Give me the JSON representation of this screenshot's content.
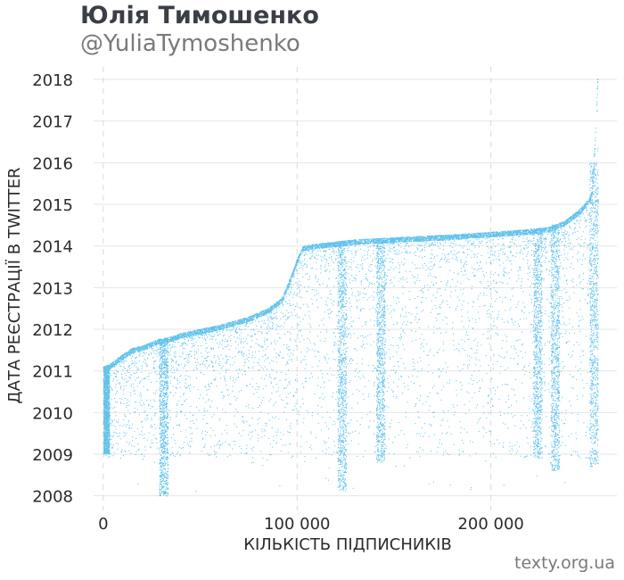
{
  "title": "Юлія Тимошенко",
  "subtitle": "@YuliaTymoshenko",
  "credit": "texty.org.ua",
  "colors": {
    "points": "#2eaee6",
    "grid": "#e6e6e6",
    "vgrid": "#d9d9d9",
    "title": "#3b3e47",
    "muted": "#7a7a7a"
  },
  "chart_data": {
    "type": "scatter",
    "xlabel": "КІЛЬКІСТЬ ПІДПИСНИКІВ",
    "ylabel": "ДАТА РЕЄСТРАЦІЇ В TWITTER",
    "xlim": [
      -5000,
      265000
    ],
    "ylim": [
      2007.65,
      2018.3
    ],
    "x_ticks": [
      0,
      100000,
      200000
    ],
    "x_tick_labels": [
      "0",
      "100 000",
      "200 000"
    ],
    "y_ticks": [
      2008,
      2009,
      2010,
      2011,
      2012,
      2013,
      2014,
      2015,
      2016,
      2017,
      2018
    ],
    "y_tick_labels": [
      "2008",
      "2009",
      "2010",
      "2011",
      "2012",
      "2013",
      "2014",
      "2015",
      "2016",
      "2017",
      "2018"
    ],
    "grid": true,
    "frontier": {
      "x": [
        0,
        3000,
        10000,
        15000,
        20000,
        28000,
        35000,
        40000,
        60000,
        75000,
        85000,
        92000,
        96000,
        100000,
        103000,
        110000,
        130000,
        150000,
        180000,
        200000,
        220000,
        230000,
        238000,
        245000,
        248000,
        250000,
        252000,
        253000,
        254000,
        255000
      ],
      "y": [
        2011.1,
        2011.15,
        2011.4,
        2011.55,
        2011.6,
        2011.75,
        2011.82,
        2011.9,
        2012.1,
        2012.3,
        2012.5,
        2012.75,
        2013.2,
        2013.7,
        2014.0,
        2014.05,
        2014.15,
        2014.2,
        2014.27,
        2014.33,
        2014.4,
        2014.45,
        2014.6,
        2014.85,
        2015.0,
        2015.1,
        2015.3,
        2016.0,
        2017.0,
        2018.1
      ]
    },
    "band_columns": [
      [
        31000,
        2008.0
      ],
      [
        123000,
        2008.1
      ],
      [
        143000,
        2008.8
      ],
      [
        224000,
        2008.9
      ],
      [
        233000,
        2008.6
      ],
      [
        253000,
        2008.7
      ]
    ]
  }
}
